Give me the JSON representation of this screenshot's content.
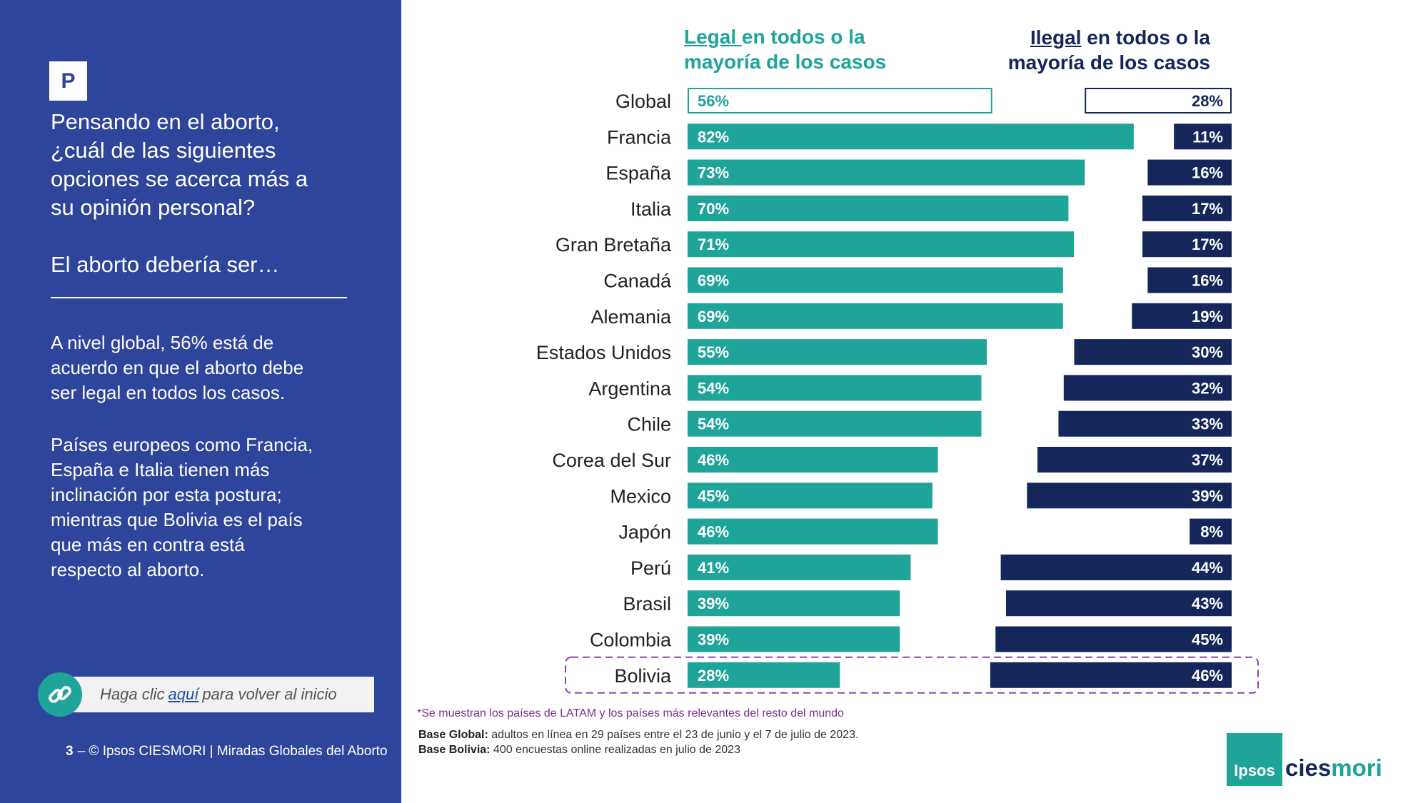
{
  "left": {
    "badge": "P",
    "question": "Pensando en el aborto,\n¿cuál de las siguientes\nopciones se acerca más a\nsu opinión personal?",
    "question_sub": "El aborto debería ser…",
    "summary_1": "A nivel global, 56% está de\nacuerdo en que el aborto debe\nser legal en todos los casos.",
    "summary_2": "Países europeos como Francia,\nEspaña e Italia tienen más\ninclinación por esta postura;\nmientras que Bolivia es el país\nque más en contra está\nrespecto al aborto.",
    "link_pre": "Haga clic",
    "link_here": "aquí",
    "link_post": "para volver al inicio",
    "page_num": "3",
    "footer": "–  © Ipsos CIESMORI | Miradas Globales del Aborto"
  },
  "headers": {
    "legal_key": "Legal ",
    "legal_rest": "en todos o la\nmayoría de los casos",
    "illegal_key": "Ilegal",
    "illegal_rest": " en todos o la\nmayoría de los casos"
  },
  "footnote": "*Se muestran los países de LATAM y los países más relevantes del resto del mundo",
  "base_global_label": "Base Global:",
  "base_global": " adultos en línea en 29 países entre el 23 de junio y el 7 de julio de 2023.",
  "base_bolivia_label": "Base Bolivia:",
  "base_bolivia": " 400 encuestas online realizadas en julio de 2023",
  "logo": {
    "ipsos": "Ipsos",
    "cies": "cies",
    "mori": "mori"
  },
  "colors": {
    "panel": "#2E459C",
    "legal": "#1FA49A",
    "illegal": "#14265A",
    "highlight": "#8E44AD"
  },
  "chart_data": {
    "type": "bar",
    "orientation": "horizontal",
    "categories": [
      "Global",
      "Francia",
      "España",
      "Italia",
      "Gran Bretaña",
      "Canadá",
      "Alemania",
      "Estados Unidos",
      "Argentina",
      "Chile",
      "Corea del Sur",
      "Mexico",
      "Japón",
      "Perú",
      "Brasil",
      "Colombia",
      "Bolivia"
    ],
    "series": [
      {
        "name": "Legal en todos o la mayoría de los casos",
        "values": [
          56,
          82,
          73,
          70,
          71,
          69,
          69,
          55,
          54,
          54,
          46,
          45,
          46,
          41,
          39,
          39,
          28
        ]
      },
      {
        "name": "Ilegal en todos o la mayoría de los casos",
        "values": [
          28,
          11,
          16,
          17,
          17,
          16,
          19,
          30,
          32,
          33,
          37,
          39,
          8,
          44,
          43,
          45,
          46
        ]
      }
    ],
    "value_suffix": "%",
    "outlined_category": "Global",
    "highlighted_category": "Bolivia"
  }
}
